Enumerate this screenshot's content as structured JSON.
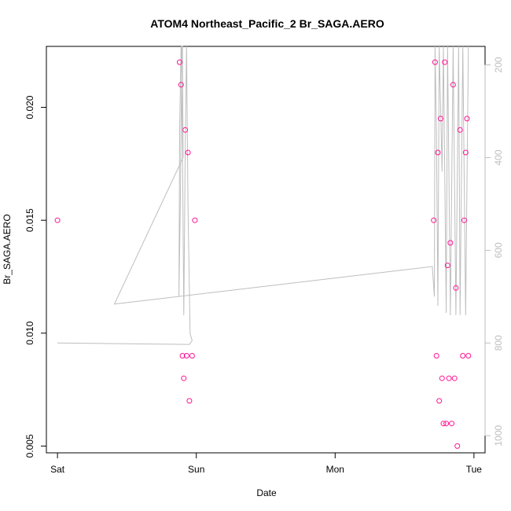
{
  "chart_data": {
    "type": "scatter",
    "title": "ATOM4 Northeast_Pacific_2 Br_SAGA.AERO",
    "xlabel": "Date",
    "ylabel": "Br_SAGA.AERO",
    "x_ticks": [
      "Sat",
      "Sun",
      "Mon",
      "Tue"
    ],
    "y_ticks": [
      "0.005",
      "0.010",
      "0.015",
      "0.020"
    ],
    "y_tick_values": [
      0.005,
      0.01,
      0.015,
      0.02
    ],
    "y2_ticks": [
      "200",
      "400",
      "600",
      "800",
      "1000"
    ],
    "y2_tick_values": [
      200,
      400,
      600,
      800,
      1000
    ],
    "x_unit": "days since Sat 00:00",
    "xlim": [
      -0.08,
      3.08
    ],
    "ylim": [
      0.0047,
      0.0227
    ],
    "y2lim": [
      1037,
      160
    ],
    "y2_reversed": true,
    "points_color": "#ff1493",
    "line_color": "#bebebe",
    "series": [
      {
        "name": "Br_SAGA.AERO",
        "kind": "points",
        "points": [
          [
            0.0,
            0.015
          ],
          [
            0.88,
            0.022
          ],
          [
            0.89,
            0.021
          ],
          [
            0.9,
            0.009
          ],
          [
            0.91,
            0.008
          ],
          [
            0.92,
            0.019
          ],
          [
            0.93,
            0.009
          ],
          [
            0.94,
            0.018
          ],
          [
            0.95,
            0.007
          ],
          [
            0.97,
            0.009
          ],
          [
            0.99,
            0.015
          ],
          [
            2.71,
            0.015
          ],
          [
            2.72,
            0.022
          ],
          [
            2.73,
            0.009
          ],
          [
            2.74,
            0.018
          ],
          [
            2.75,
            0.007
          ],
          [
            2.76,
            0.0195
          ],
          [
            2.77,
            0.008
          ],
          [
            2.78,
            0.006
          ],
          [
            2.79,
            0.022
          ],
          [
            2.8,
            0.006
          ],
          [
            2.81,
            0.013
          ],
          [
            2.82,
            0.008
          ],
          [
            2.83,
            0.014
          ],
          [
            2.84,
            0.006
          ],
          [
            2.85,
            0.021
          ],
          [
            2.86,
            0.008
          ],
          [
            2.87,
            0.012
          ],
          [
            2.88,
            0.005
          ],
          [
            2.9,
            0.019
          ],
          [
            2.92,
            0.009
          ],
          [
            2.93,
            0.015
          ],
          [
            2.94,
            0.018
          ],
          [
            2.95,
            0.0195
          ],
          [
            2.96,
            0.009
          ]
        ]
      },
      {
        "name": "pressure",
        "kind": "line",
        "axis": "y2",
        "points": [
          [
            0.0,
            800
          ],
          [
            0.95,
            803
          ],
          [
            0.97,
            795
          ],
          [
            0.955,
            780
          ],
          [
            0.94,
            500
          ],
          [
            0.93,
            160
          ],
          [
            0.92,
            380
          ],
          [
            0.91,
            740
          ],
          [
            0.9,
            380
          ],
          [
            0.89,
            160
          ],
          [
            0.88,
            340
          ],
          [
            0.875,
            700
          ],
          [
            0.885,
            500
          ],
          [
            0.895,
            160
          ],
          [
            0.9,
            140
          ],
          [
            0.905,
            400
          ],
          [
            0.41,
            716
          ],
          [
            2.7,
            635
          ],
          [
            2.715,
            700
          ],
          [
            2.72,
            160
          ],
          [
            2.73,
            350
          ],
          [
            2.74,
            720
          ],
          [
            2.75,
            160
          ],
          [
            2.77,
            430
          ],
          [
            2.78,
            160
          ],
          [
            2.8,
            735
          ],
          [
            2.81,
            160
          ],
          [
            2.83,
            740
          ],
          [
            2.85,
            160
          ],
          [
            2.87,
            740
          ],
          [
            2.89,
            160
          ],
          [
            2.9,
            740
          ],
          [
            2.92,
            160
          ],
          [
            2.94,
            740
          ],
          [
            2.96,
            160
          ]
        ]
      }
    ]
  }
}
